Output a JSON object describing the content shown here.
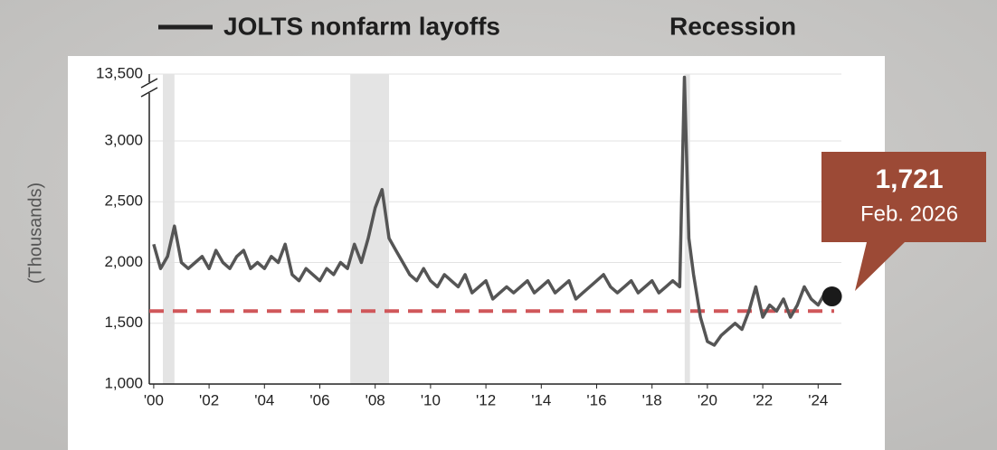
{
  "chart_data": {
    "type": "line",
    "y_label": "(Thousands)",
    "recession_label": "Recession",
    "recessions": [
      [
        2000.33,
        2000.75
      ],
      [
        2007.1,
        2008.5
      ],
      [
        2019.18,
        2019.37
      ]
    ],
    "xlim": [
      1999.84,
      2024.84
    ],
    "xticks": [
      {
        "value": 2000,
        "label": "'00"
      },
      {
        "value": 2002,
        "label": "'02"
      },
      {
        "value": 2004,
        "label": "'04"
      },
      {
        "value": 2006,
        "label": "'06"
      },
      {
        "value": 2008,
        "label": "'08"
      },
      {
        "value": 2010,
        "label": "'10"
      },
      {
        "value": 2012,
        "label": "'12"
      },
      {
        "value": 2014,
        "label": "'14"
      },
      {
        "value": 2016,
        "label": "'16"
      },
      {
        "value": 2018,
        "label": "'18"
      },
      {
        "value": 2020,
        "label": "'20"
      },
      {
        "value": 2022,
        "label": "'22"
      },
      {
        "value": 2024,
        "label": "'24"
      }
    ],
    "ylim": [
      1000,
      13500
    ],
    "yticks": [
      {
        "value": 1000,
        "label": "1,000"
      },
      {
        "value": 1500,
        "label": "1,500"
      },
      {
        "value": 2000,
        "label": "2,000"
      },
      {
        "value": 2500,
        "label": "2,500"
      },
      {
        "value": 3000,
        "label": "3,000"
      },
      {
        "value": 13500,
        "label": "13,500"
      }
    ],
    "axis_break": true,
    "grid": true,
    "reference_line": {
      "value": 1600,
      "color": "#d0575a"
    },
    "x": [
      2000.0,
      2000.25,
      2000.5,
      2000.75,
      2001.0,
      2001.25,
      2001.5,
      2001.75,
      2002.0,
      2002.25,
      2002.5,
      2002.75,
      2003.0,
      2003.25,
      2003.5,
      2003.75,
      2004.0,
      2004.25,
      2004.5,
      2004.75,
      2005.0,
      2005.25,
      2005.5,
      2005.75,
      2006.0,
      2006.25,
      2006.5,
      2006.75,
      2007.0,
      2007.25,
      2007.5,
      2007.75,
      2008.0,
      2008.25,
      2008.5,
      2008.75,
      2009.0,
      2009.25,
      2009.5,
      2009.75,
      2010.0,
      2010.25,
      2010.5,
      2010.75,
      2011.0,
      2011.25,
      2011.5,
      2011.75,
      2012.0,
      2012.25,
      2012.5,
      2012.75,
      2013.0,
      2013.25,
      2013.5,
      2013.75,
      2014.0,
      2014.25,
      2014.5,
      2014.75,
      2015.0,
      2015.25,
      2015.5,
      2015.75,
      2016.0,
      2016.25,
      2016.5,
      2016.75,
      2017.0,
      2017.25,
      2017.5,
      2017.75,
      2018.0,
      2018.25,
      2018.5,
      2018.75,
      2019.0,
      2019.17,
      2019.33,
      2019.5,
      2019.75,
      2020.0,
      2020.25,
      2020.5,
      2020.75,
      2021.0,
      2021.25,
      2021.5,
      2021.75,
      2022.0,
      2022.25,
      2022.5,
      2022.75,
      2023.0,
      2023.25,
      2023.5,
      2023.75,
      2024.0,
      2024.25,
      2024.5
    ],
    "series": [
      {
        "name": "JOLTS nonfarm layoffs",
        "color": "#555555",
        "values": [
          2150,
          1950,
          2050,
          2300,
          2000,
          1950,
          2000,
          2050,
          1950,
          2100,
          2000,
          1950,
          2050,
          2100,
          1950,
          2000,
          1950,
          2050,
          2000,
          2150,
          1900,
          1850,
          1950,
          1900,
          1850,
          1950,
          1900,
          2000,
          1950,
          2150,
          2000,
          2200,
          2450,
          2600,
          2200,
          2100,
          2000,
          1900,
          1850,
          1950,
          1850,
          1800,
          1900,
          1850,
          1800,
          1900,
          1750,
          1800,
          1850,
          1700,
          1750,
          1800,
          1750,
          1800,
          1850,
          1750,
          1800,
          1850,
          1750,
          1800,
          1850,
          1700,
          1750,
          1800,
          1850,
          1900,
          1800,
          1750,
          1800,
          1850,
          1750,
          1800,
          1850,
          1750,
          1800,
          1850,
          1800,
          13000,
          2200,
          1900,
          1550,
          1350,
          1320,
          1400,
          1450,
          1500,
          1450,
          1600,
          1800,
          1550,
          1650,
          1600,
          1700,
          1550,
          1650,
          1800,
          1700,
          1650,
          1750,
          1721
        ]
      }
    ],
    "annotation": {
      "value_label": "1,721",
      "date": "Feb. 2026",
      "color": "#9c4a36"
    }
  }
}
